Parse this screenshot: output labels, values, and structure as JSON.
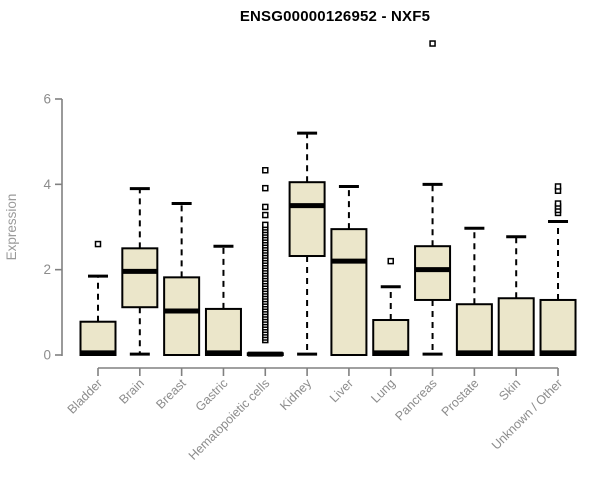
{
  "page": {
    "title": "ENSG00000126952 - NXF5"
  },
  "chart_data": {
    "type": "boxplot",
    "title": "ENSG00000126952 - NXF5",
    "xlabel": "",
    "ylabel": "Expression",
    "ylim": [
      0,
      6
    ],
    "yticks": [
      0,
      2,
      4,
      6
    ],
    "grid": false,
    "legend": "none",
    "colors": {
      "box_fill": "#EBE6CA",
      "box_stroke": "#000000",
      "median": "#000000",
      "whisker": "#000000",
      "axis": "#808080",
      "tick_label": "#8C8C8C",
      "axis_title": "#9A9A9A",
      "title": "#000000",
      "background": "#FFFFFF"
    },
    "categories": [
      "Bladder",
      "Brain",
      "Breast",
      "Gastric",
      "Hematopoietic cells",
      "Kidney",
      "Liver",
      "Lung",
      "Pancreas",
      "Prostate",
      "Skin",
      "Unknown / Other"
    ],
    "series": [
      {
        "name": "Bladder",
        "whisker_low": 0,
        "q1": 0,
        "median": 0.05,
        "q3": 0.78,
        "whisker_high": 1.85,
        "outliers": [
          2.6
        ]
      },
      {
        "name": "Brain",
        "whisker_low": 0.02,
        "q1": 1.12,
        "median": 1.96,
        "q3": 2.5,
        "whisker_high": 3.9,
        "outliers": []
      },
      {
        "name": "Breast",
        "whisker_low": 0,
        "q1": 0,
        "median": 1.03,
        "q3": 1.82,
        "whisker_high": 3.55,
        "outliers": []
      },
      {
        "name": "Gastric",
        "whisker_low": 0,
        "q1": 0,
        "median": 0.05,
        "q3": 1.08,
        "whisker_high": 2.55,
        "outliers": []
      },
      {
        "name": "Hematopoietic cells",
        "whisker_low": 0,
        "q1": 0,
        "median": 0.02,
        "q3": 0.04,
        "whisker_high": 0.04,
        "outliers": [
          0.35,
          0.41,
          0.47,
          0.53,
          0.59,
          0.65,
          0.71,
          0.77,
          0.83,
          0.89,
          0.95,
          1.01,
          1.07,
          1.13,
          1.19,
          1.25,
          1.31,
          1.37,
          1.43,
          1.49,
          1.55,
          1.61,
          1.67,
          1.73,
          1.79,
          1.85,
          1.91,
          1.97,
          2.03,
          2.09,
          2.15,
          2.21,
          2.27,
          2.33,
          2.39,
          2.45,
          2.51,
          2.57,
          2.63,
          2.69,
          2.75,
          2.81,
          2.87,
          2.93,
          2.99,
          3.05,
          3.28,
          3.47,
          3.91,
          4.33
        ]
      },
      {
        "name": "Kidney",
        "whisker_low": 0.02,
        "q1": 2.32,
        "median": 3.5,
        "q3": 4.05,
        "whisker_high": 5.2,
        "outliers": []
      },
      {
        "name": "Liver",
        "whisker_low": 0,
        "q1": 0,
        "median": 2.2,
        "q3": 2.95,
        "whisker_high": 3.95,
        "outliers": []
      },
      {
        "name": "Lung",
        "whisker_low": 0,
        "q1": 0,
        "median": 0.05,
        "q3": 0.82,
        "whisker_high": 1.6,
        "outliers": [
          2.2
        ]
      },
      {
        "name": "Pancreas",
        "whisker_low": 0.02,
        "q1": 1.29,
        "median": 2.0,
        "q3": 2.55,
        "whisker_high": 4.0,
        "outliers": [
          7.3
        ]
      },
      {
        "name": "Prostate",
        "whisker_low": 0,
        "q1": 0,
        "median": 0.05,
        "q3": 1.19,
        "whisker_high": 2.97,
        "outliers": []
      },
      {
        "name": "Skin",
        "whisker_low": 0,
        "q1": 0,
        "median": 0.05,
        "q3": 1.33,
        "whisker_high": 2.77,
        "outliers": []
      },
      {
        "name": "Unknown / Other",
        "whisker_low": 0,
        "q1": 0,
        "median": 0.05,
        "q3": 1.29,
        "whisker_high": 3.13,
        "outliers": [
          3.33,
          3.4,
          3.48,
          3.55,
          3.85,
          3.95
        ]
      }
    ]
  }
}
